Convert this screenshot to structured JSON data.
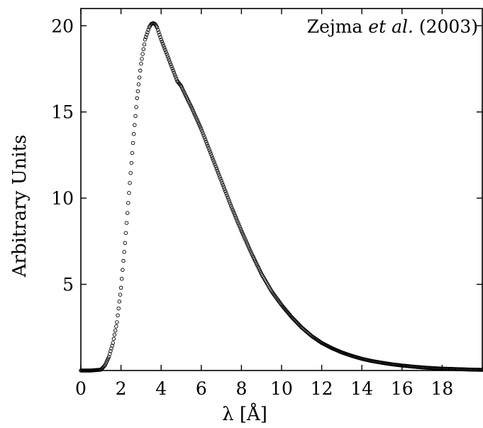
{
  "chart_data": {
    "type": "scatter",
    "xlabel": "λ [Å]",
    "ylabel": "Arbitrary Units",
    "annotation": {
      "prefix": "Zejma ",
      "italic": "et al.",
      "suffix": " (2003)"
    },
    "xlim": [
      0,
      20
    ],
    "ylim": [
      0,
      21
    ],
    "x_ticks": [
      0,
      2,
      4,
      6,
      8,
      10,
      12,
      14,
      16,
      18
    ],
    "x_tick_labels": [
      "0",
      "2",
      "4",
      "6",
      "8",
      "10",
      "12",
      "14",
      "16",
      "18"
    ],
    "y_ticks": [
      5,
      10,
      15,
      20
    ],
    "y_tick_labels": [
      "5",
      "10",
      "15",
      "20"
    ],
    "marker": "open-circle",
    "color": "#000000",
    "series": [
      {
        "x": [
          0.0,
          0.5,
          1.0,
          1.2,
          1.4,
          1.6,
          1.8,
          2.0,
          2.2,
          2.4,
          2.6,
          2.8,
          3.0,
          3.2,
          3.4,
          3.5,
          3.6,
          3.7,
          3.8,
          4.0,
          4.2,
          4.4,
          4.6,
          4.8,
          5.0,
          5.2,
          5.5,
          6.0,
          6.5,
          7.0,
          7.5,
          8.0,
          8.5,
          9.0,
          9.5,
          10.0,
          10.5,
          11.0,
          11.5,
          12.0,
          12.5,
          13.0,
          13.5,
          14.0,
          14.5,
          15.0,
          15.5,
          16.0,
          16.5,
          17.0,
          17.5,
          18.0,
          18.5,
          19.0,
          19.5,
          20.0
        ],
        "y": [
          0.0,
          0.0,
          0.05,
          0.3,
          0.8,
          1.6,
          2.8,
          4.8,
          7.4,
          10.3,
          13.2,
          15.8,
          17.8,
          19.2,
          19.9,
          20.1,
          20.15,
          20.1,
          19.9,
          19.2,
          18.6,
          18.0,
          17.4,
          16.8,
          16.5,
          16.0,
          15.3,
          14.0,
          12.5,
          11.0,
          9.5,
          8.1,
          6.8,
          5.6,
          4.6,
          3.8,
          3.1,
          2.5,
          2.0,
          1.6,
          1.3,
          1.05,
          0.85,
          0.68,
          0.55,
          0.45,
          0.36,
          0.29,
          0.23,
          0.18,
          0.14,
          0.11,
          0.09,
          0.07,
          0.05,
          0.04
        ]
      }
    ]
  }
}
